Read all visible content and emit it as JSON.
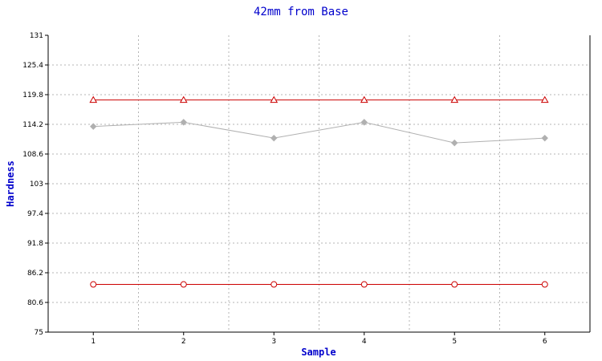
{
  "chart_data": {
    "type": "line",
    "title": "42mm from Base",
    "xlabel": "Sample",
    "ylabel": "Hardness",
    "x": [
      1,
      2,
      3,
      4,
      5,
      6
    ],
    "ylim": [
      75,
      131
    ],
    "yticks": [
      "75",
      "80.6",
      "86.2",
      "91.8",
      "97.4",
      "103",
      "108.6",
      "114.2",
      "119.8",
      "125.4",
      "131"
    ],
    "grid": true,
    "series": [
      {
        "values": [
          118.8,
          118.8,
          118.8,
          118.8,
          118.8,
          118.8
        ],
        "color": "#cc0000",
        "marker": "triangle"
      },
      {
        "values": [
          113.8,
          114.6,
          111.6,
          114.6,
          110.7,
          111.6
        ],
        "color": "#b0b0b0",
        "marker": "diamond"
      },
      {
        "values": [
          84.0,
          84.0,
          84.0,
          84.0,
          84.0,
          84.0
        ],
        "color": "#cc0000",
        "marker": "circle"
      }
    ]
  }
}
